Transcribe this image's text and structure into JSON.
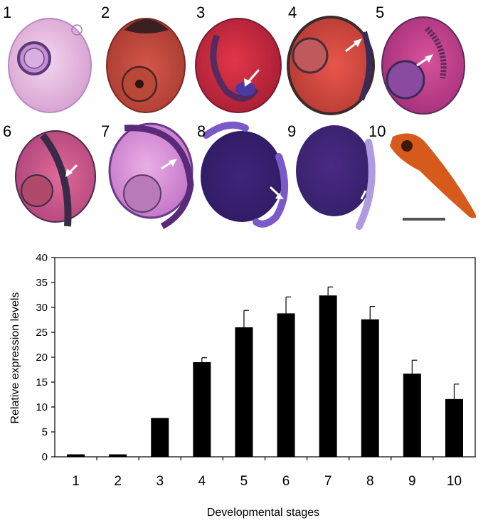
{
  "figure": {
    "panels": [
      {
        "label": "1",
        "stain": "#e7b4dc",
        "edge": "#a583b6"
      },
      {
        "label": "2",
        "stain": "#c4463c",
        "edge": "#6b3030"
      },
      {
        "label": "3",
        "stain": "#cf2a3c",
        "edge": "#7a2a4a"
      },
      {
        "label": "4",
        "stain": "#d9443c",
        "edge": "#5a3a3a"
      },
      {
        "label": "5",
        "stain": "#c5438c",
        "edge": "#6a2f6d"
      },
      {
        "label": "6",
        "stain": "#c95a8a",
        "edge": "#4a2f4a"
      },
      {
        "label": "7",
        "stain": "#d888d6",
        "edge": "#6a3a8a"
      },
      {
        "label": "8",
        "stain": "#4a2a80",
        "edge": "#6a4ab8"
      },
      {
        "label": "9",
        "stain": "#4f2d86",
        "edge": "#8a6ad0"
      },
      {
        "label": "10",
        "stain": "#d55a1c",
        "edge": "#8a2a0c"
      }
    ],
    "colors": {
      "bar": "#000000",
      "arrow": "#ffffff",
      "scale_bar": "#555555"
    }
  },
  "chart_data": {
    "type": "bar",
    "categories": [
      "1",
      "2",
      "3",
      "4",
      "5",
      "6",
      "7",
      "8",
      "9",
      "10"
    ],
    "values": [
      0.5,
      0.5,
      7.8,
      19.0,
      26.0,
      28.8,
      32.4,
      27.6,
      16.7,
      11.6
    ],
    "errors": [
      0,
      0,
      0,
      0.9,
      3.4,
      3.3,
      1.7,
      2.6,
      2.7,
      3.0
    ],
    "xlabel": "Developmental stages",
    "ylabel": "Relative expression levels",
    "ylim": [
      0,
      40
    ],
    "yticks": [
      "0",
      "5",
      "10",
      "15",
      "20",
      "25",
      "30",
      "35",
      "40"
    ],
    "grid": false,
    "legend": "none"
  }
}
